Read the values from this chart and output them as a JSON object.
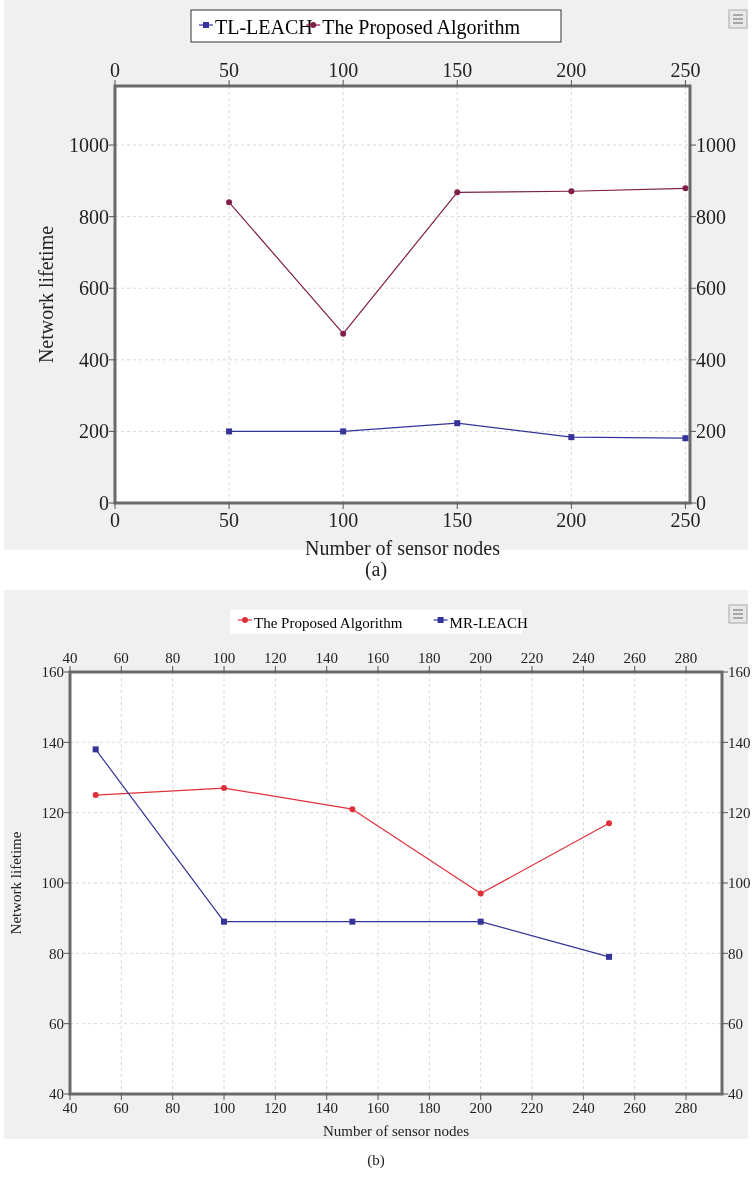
{
  "chart_data": [
    {
      "type": "line",
      "xlabel": "Number of sensor nodes",
      "ylabel": "Network lifetime",
      "annotations": [
        "(a)"
      ],
      "xlim": [
        0,
        252
      ],
      "xticks": [
        0,
        50,
        100,
        150,
        200,
        250
      ],
      "x2lim": [
        0,
        252
      ],
      "x2ticks": [
        0,
        50,
        100,
        150,
        200,
        250
      ],
      "ylim": [
        0,
        1165
      ],
      "yticks": [
        0,
        200,
        400,
        600,
        800,
        1000
      ],
      "y2lim": [
        0,
        1165
      ],
      "y2ticks": [
        0,
        200,
        400,
        600,
        800,
        1000
      ],
      "grid": true,
      "legend": "top",
      "x": [
        50,
        100,
        150,
        200,
        250
      ],
      "series": [
        {
          "name": "TL-LEACH",
          "color": "#333399",
          "marker": "square",
          "values": [
            200,
            200,
            223,
            184,
            181
          ]
        },
        {
          "name": "The Proposed Algorithm",
          "color": "#7f1f4a",
          "marker": "circle",
          "values": [
            840,
            473,
            868,
            871,
            879
          ]
        }
      ]
    },
    {
      "type": "line",
      "xlabel": "Number of sensor nodes",
      "ylabel": "Network lifetime",
      "annotations": [
        "(b)"
      ],
      "xlim": [
        40,
        294
      ],
      "xticks": [
        40,
        60,
        80,
        100,
        120,
        140,
        160,
        180,
        200,
        220,
        240,
        260,
        280
      ],
      "x2lim": [
        40,
        294
      ],
      "x2ticks": [
        40,
        60,
        80,
        100,
        120,
        140,
        160,
        180,
        200,
        220,
        240,
        260,
        280
      ],
      "ylim": [
        40,
        160
      ],
      "yticks": [
        40,
        60,
        80,
        100,
        120,
        140,
        160
      ],
      "y2lim": [
        40,
        160
      ],
      "y2ticks": [
        40,
        60,
        80,
        100,
        120,
        140,
        160
      ],
      "grid": true,
      "legend": "top",
      "x": [
        50,
        100,
        150,
        200,
        250
      ],
      "series": [
        {
          "name": "The Proposed Algorithm",
          "color": "#e0303a",
          "marker": "circle",
          "values": [
            125,
            127,
            121,
            97,
            117
          ]
        },
        {
          "name": "MR-LEACH",
          "color": "#333399",
          "marker": "square",
          "values": [
            138,
            89,
            89,
            89,
            79
          ]
        }
      ]
    }
  ]
}
